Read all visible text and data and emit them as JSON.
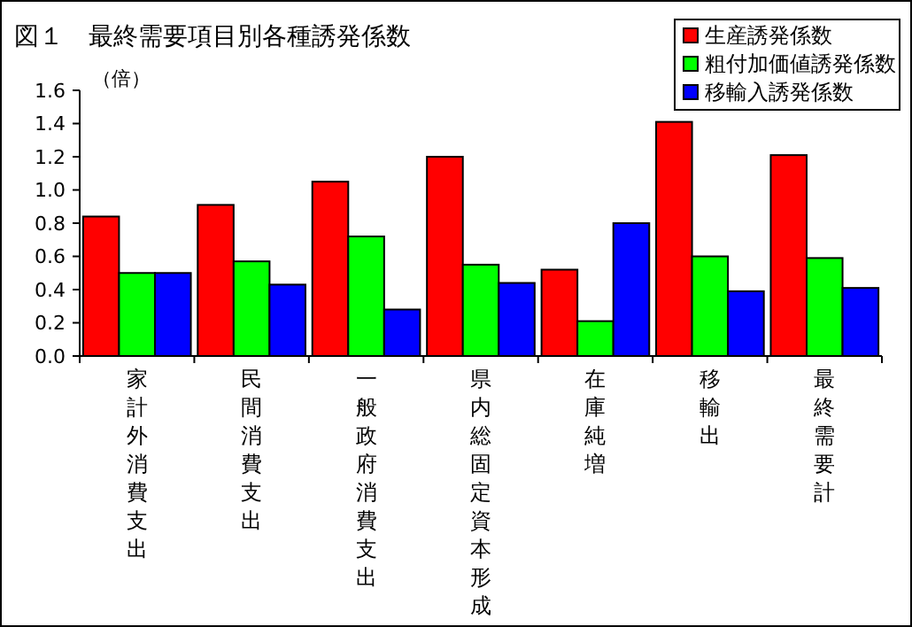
{
  "chart_data": {
    "type": "bar",
    "title": "図１　最終需要項目別各種誘発係数",
    "ylabel": "（倍）",
    "categories": [
      "家計外消費支出",
      "民間消費支出",
      "一般政府消費支出",
      "県内総固定資本形成",
      "在庫純増",
      "移輸出",
      "最終需要計"
    ],
    "series": [
      {
        "name": "生産誘発係数",
        "color": "#ff0000",
        "values": [
          0.84,
          0.91,
          1.05,
          1.2,
          0.52,
          1.41,
          1.21
        ]
      },
      {
        "name": "粗付加価値誘発係数",
        "color": "#00ff00",
        "values": [
          0.5,
          0.57,
          0.72,
          0.55,
          0.21,
          0.6,
          0.59
        ]
      },
      {
        "name": "移輸入誘発係数",
        "color": "#0000ff",
        "values": [
          0.5,
          0.43,
          0.28,
          0.44,
          0.8,
          0.39,
          0.41
        ]
      }
    ],
    "ylim": [
      0,
      1.6
    ],
    "yticks": [
      {
        "value": 0,
        "label": "0.0"
      },
      {
        "value": 0.2,
        "label": "0.2"
      },
      {
        "value": 0.4,
        "label": "0.4"
      },
      {
        "value": 0.6,
        "label": "0.6"
      },
      {
        "value": 0.8,
        "label": "0.8"
      },
      {
        "value": 1,
        "label": "1.0"
      },
      {
        "value": 1.2,
        "label": "1.2"
      },
      {
        "value": 1.4,
        "label": "1.4"
      },
      {
        "value": 1.6,
        "label": "1.6"
      }
    ],
    "grid": false,
    "legend": "top right"
  }
}
